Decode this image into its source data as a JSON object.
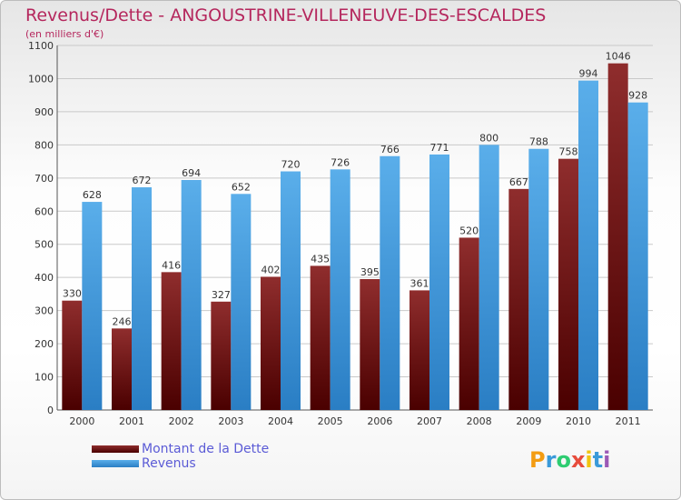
{
  "header": {
    "title": "Revenus/Dette - ANGOUSTRINE-VILLENEUVE-DES-ESCALDES",
    "subtitle": "(en milliers d'€)"
  },
  "chart_data": {
    "type": "bar",
    "title": "Revenus/Dette - ANGOUSTRINE-VILLENEUVE-DES-ESCALDES",
    "ylabel": "(en milliers d'€)",
    "xlabel": "",
    "ylim": [
      0,
      1100
    ],
    "yticks": [
      0,
      100,
      200,
      300,
      400,
      500,
      600,
      700,
      800,
      900,
      1000,
      1100
    ],
    "grid": true,
    "legend": "bottom-left",
    "categories": [
      "2000",
      "2001",
      "2002",
      "2003",
      "2004",
      "2005",
      "2006",
      "2007",
      "2008",
      "2009",
      "2010",
      "2011"
    ],
    "series": [
      {
        "name": "Montant de la Dette",
        "color": "#7a1c1c",
        "values": [
          330,
          246,
          416,
          327,
          402,
          435,
          395,
          361,
          520,
          667,
          758,
          1046
        ]
      },
      {
        "name": "Revenus",
        "color": "#4fa3e3",
        "values": [
          628,
          672,
          694,
          652,
          720,
          726,
          766,
          771,
          800,
          788,
          994,
          928
        ]
      }
    ]
  },
  "logo": {
    "text": "Proxiti",
    "colors": [
      "#f39c12",
      "#3a9ad9",
      "#2ecc71",
      "#e74c3c",
      "#f1c40f",
      "#3a9ad9",
      "#9b59b6"
    ]
  }
}
